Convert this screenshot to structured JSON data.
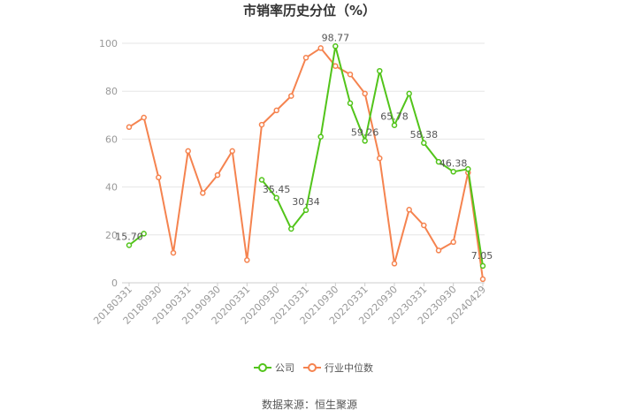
{
  "chart_data": {
    "type": "line",
    "title": "市销率历史分位（%）",
    "source": "数据来源：恒生聚源",
    "ylim": [
      0,
      100
    ],
    "yticks": [
      0,
      20,
      40,
      60,
      80,
      100
    ],
    "x_tick_labels": [
      "20180331",
      "20180930",
      "20190331",
      "20190930",
      "20200331",
      "20200930",
      "20210331",
      "20210930",
      "20220331",
      "20220930",
      "20230331",
      "20230930",
      "20240429"
    ],
    "grid": true,
    "legend_position": "bottom",
    "colors": {
      "company": "#52c41a",
      "industry": "#f5834f"
    },
    "series": [
      {
        "name": "公司",
        "values": [
          15.7,
          20.5,
          null,
          null,
          null,
          null,
          null,
          null,
          null,
          43.0,
          35.45,
          22.5,
          30.34,
          61.0,
          98.77,
          75.0,
          59.26,
          88.5,
          65.78,
          79.0,
          58.38,
          50.5,
          46.38,
          47.5,
          7.05
        ],
        "labels": [
          {
            "index": 0,
            "text": "15.70"
          },
          {
            "index": 10,
            "text": "35.45"
          },
          {
            "index": 12,
            "text": "30.34"
          },
          {
            "index": 14,
            "text": "98.77"
          },
          {
            "index": 16,
            "text": "59.26"
          },
          {
            "index": 18,
            "text": "65.78"
          },
          {
            "index": 20,
            "text": "58.38"
          },
          {
            "index": 22,
            "text": "46.38"
          },
          {
            "index": 24,
            "text": "7.05"
          }
        ]
      },
      {
        "name": "行业中位数",
        "values": [
          65.0,
          69.0,
          44.0,
          12.5,
          55.0,
          37.5,
          45.0,
          55.0,
          9.5,
          66.0,
          72.0,
          78.0,
          94.0,
          98.0,
          90.5,
          87.0,
          79.0,
          52.0,
          8.0,
          30.5,
          24.0,
          13.5,
          17.0,
          46.0,
          1.5
        ]
      }
    ]
  }
}
